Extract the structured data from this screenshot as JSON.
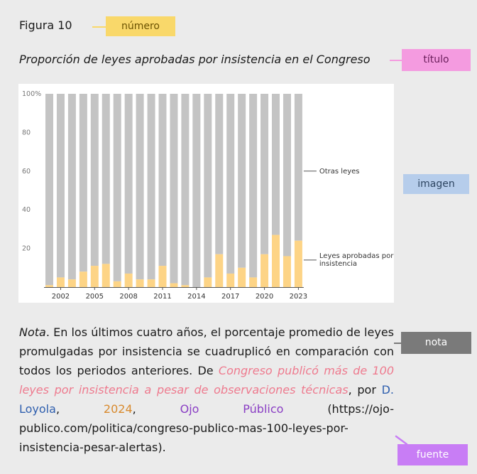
{
  "figure": {
    "number": "Figura 10",
    "title": "Proporción de leyes aprobadas por insistencia en el Congreso"
  },
  "tags": {
    "numero": "número",
    "titulo": "título",
    "imagen": "imagen",
    "nota": "nota",
    "fuente": "fuente"
  },
  "tag_colors": {
    "numero": "#f9d86a",
    "titulo": "#f49be0",
    "imagen": "#b6cdeb",
    "nota": "#7a7a7a",
    "fuente": "#c87df5"
  },
  "note": {
    "lead": "Nota",
    "body": ". En los últimos cuatro años, el porcentaje promedio de leyes promulgadas por insistencia se cuadruplicó en comparación con todos los periodos anteriores. De ",
    "source_title": "Congreso publicó más de 100 leyes por insistencia a pesar de observaciones técnicas",
    "by": ", por ",
    "author": "D. Loyola",
    "sep1": ", ",
    "year": "2024",
    "sep2": ", ",
    "publisher": "Ojo Público",
    "url": " (https://ojo-publico.com/politica/congreso-publico-mas-100-leyes-por-insistencia-pesar-alertas)."
  },
  "chart_data": {
    "type": "bar",
    "stacked": true,
    "percent": true,
    "categories": [
      "2001",
      "2002",
      "2003",
      "2004",
      "2005",
      "2006",
      "2007",
      "2008",
      "2009",
      "2010",
      "2011",
      "2012",
      "2013",
      "2014",
      "2015",
      "2016",
      "2017",
      "2018",
      "2019",
      "2020",
      "2021",
      "2022",
      "2023"
    ],
    "tick_labels": [
      "2002",
      "2005",
      "2008",
      "2011",
      "2014",
      "2017",
      "2020",
      "2023"
    ],
    "series": [
      {
        "name": "Leyes aprobadas por insistencia",
        "color": "#fdd486",
        "values": [
          1,
          5,
          4,
          8,
          11,
          12,
          3,
          7,
          4,
          4,
          11,
          2,
          1,
          0,
          5,
          17,
          7,
          10,
          5,
          17,
          27,
          16,
          24
        ]
      },
      {
        "name": "Otras leyes",
        "color": "#c4c4c4",
        "values": [
          99,
          95,
          96,
          92,
          89,
          88,
          97,
          93,
          96,
          96,
          89,
          98,
          99,
          100,
          95,
          83,
          93,
          90,
          95,
          83,
          73,
          84,
          76
        ]
      }
    ],
    "legend_labels": [
      "Otras leyes",
      "Leyes aprobadas por insistencia"
    ],
    "y_ticks": [
      "100%",
      "80",
      "60",
      "40",
      "20"
    ],
    "ylim": [
      0,
      100
    ],
    "grid": false,
    "legend_placement": "right"
  }
}
